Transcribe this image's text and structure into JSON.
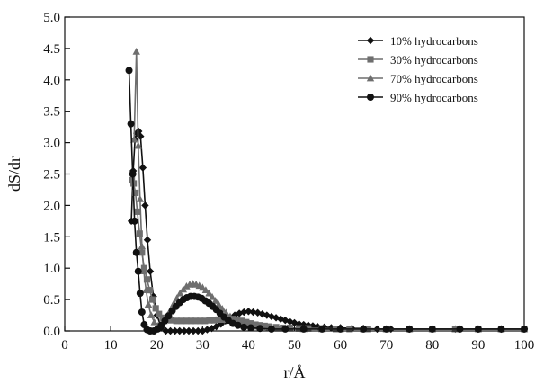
{
  "chart_data": {
    "type": "line",
    "title": "",
    "xlabel": "r/Å",
    "ylabel": "dS/dr",
    "xlim": [
      0,
      100
    ],
    "ylim": [
      0,
      5.0
    ],
    "xticks": [
      0,
      10,
      20,
      30,
      40,
      50,
      60,
      70,
      80,
      90,
      100
    ],
    "xtick_labels": [
      "0",
      "10",
      "20",
      "30",
      "40",
      "50",
      "60",
      "70",
      "80",
      "90",
      "100"
    ],
    "yticks": [
      0,
      0.5,
      1.0,
      1.5,
      2.0,
      2.5,
      3.0,
      3.5,
      4.0,
      4.5,
      5.0
    ],
    "ytick_labels": [
      "0.0",
      "0.5",
      "1.0",
      "1.5",
      "2.0",
      "2.5",
      "3.0",
      "3.5",
      "4.0",
      "4.5",
      "5.0"
    ],
    "grid": false,
    "legend_position": "top-right",
    "series": [
      {
        "name": "10% hydrocarbons",
        "color": "#111111",
        "marker": "diamond",
        "points": [
          [
            14.5,
            1.75
          ],
          [
            14.9,
            2.55
          ],
          [
            15.3,
            3.05
          ],
          [
            15.7,
            3.15
          ],
          [
            16.1,
            3.18
          ],
          [
            16.5,
            3.1
          ],
          [
            17.0,
            2.6
          ],
          [
            17.5,
            2.0
          ],
          [
            18.0,
            1.45
          ],
          [
            18.6,
            0.95
          ],
          [
            19.3,
            0.55
          ],
          [
            20.1,
            0.25
          ],
          [
            21.0,
            0.05
          ],
          [
            22.0,
            0.0
          ],
          [
            23.0,
            0.0
          ],
          [
            24.0,
            0.0
          ],
          [
            25.0,
            0.0
          ],
          [
            26.0,
            0.0
          ],
          [
            27.0,
            0.0
          ],
          [
            28.0,
            0.0
          ],
          [
            29.0,
            0.0
          ],
          [
            30.0,
            0.0
          ],
          [
            31.0,
            0.02
          ],
          [
            32.0,
            0.04
          ],
          [
            33.0,
            0.07
          ],
          [
            34.0,
            0.11
          ],
          [
            35.0,
            0.16
          ],
          [
            36.0,
            0.21
          ],
          [
            37.0,
            0.25
          ],
          [
            38.0,
            0.28
          ],
          [
            39.0,
            0.3
          ],
          [
            40.0,
            0.31
          ],
          [
            41.0,
            0.3
          ],
          [
            42.0,
            0.29
          ],
          [
            43.0,
            0.27
          ],
          [
            44.0,
            0.25
          ],
          [
            45.0,
            0.23
          ],
          [
            46.0,
            0.21
          ],
          [
            47.0,
            0.19
          ],
          [
            48.0,
            0.17
          ],
          [
            49.0,
            0.15
          ],
          [
            50.0,
            0.13
          ],
          [
            51.0,
            0.11
          ],
          [
            52.0,
            0.1
          ],
          [
            53.0,
            0.09
          ],
          [
            54.0,
            0.08
          ],
          [
            55.0,
            0.07
          ],
          [
            56.5,
            0.06
          ],
          [
            58.0,
            0.05
          ],
          [
            60.0,
            0.05
          ],
          [
            62.5,
            0.04
          ],
          [
            65.0,
            0.04
          ],
          [
            68.0,
            0.03
          ],
          [
            71.0,
            0.03
          ],
          [
            75.0,
            0.03
          ],
          [
            80.0,
            0.03
          ],
          [
            85.0,
            0.03
          ],
          [
            90.0,
            0.03
          ],
          [
            95.0,
            0.03
          ],
          [
            100.0,
            0.03
          ]
        ]
      },
      {
        "name": "30% hydrocarbons",
        "color": "#6e6e6e",
        "marker": "square",
        "points": [
          [
            14.6,
            2.4
          ],
          [
            15.0,
            2.35
          ],
          [
            15.4,
            2.2
          ],
          [
            15.8,
            1.9
          ],
          [
            16.3,
            1.55
          ],
          [
            16.8,
            1.25
          ],
          [
            17.3,
            1.0
          ],
          [
            17.9,
            0.82
          ],
          [
            18.5,
            0.65
          ],
          [
            19.1,
            0.5
          ],
          [
            19.8,
            0.36
          ],
          [
            20.5,
            0.27
          ],
          [
            21.3,
            0.21
          ],
          [
            22.2,
            0.18
          ],
          [
            23.2,
            0.17
          ],
          [
            24.3,
            0.16
          ],
          [
            25.4,
            0.16
          ],
          [
            26.5,
            0.16
          ],
          [
            27.5,
            0.16
          ],
          [
            28.5,
            0.16
          ],
          [
            29.5,
            0.16
          ],
          [
            30.5,
            0.16
          ],
          [
            31.5,
            0.17
          ],
          [
            32.5,
            0.17
          ],
          [
            33.5,
            0.18
          ],
          [
            34.5,
            0.18
          ],
          [
            35.5,
            0.19
          ],
          [
            36.5,
            0.19
          ],
          [
            37.5,
            0.18
          ],
          [
            38.5,
            0.16
          ],
          [
            39.5,
            0.14
          ],
          [
            40.5,
            0.12
          ],
          [
            41.5,
            0.1
          ],
          [
            42.5,
            0.09
          ],
          [
            43.5,
            0.08
          ],
          [
            44.5,
            0.07
          ],
          [
            46.0,
            0.06
          ],
          [
            47.5,
            0.05
          ],
          [
            49.0,
            0.05
          ],
          [
            51.0,
            0.04
          ],
          [
            53.0,
            0.04
          ],
          [
            56.0,
            0.04
          ],
          [
            59.0,
            0.03
          ],
          [
            62.0,
            0.03
          ],
          [
            66.0,
            0.03
          ],
          [
            70.0,
            0.03
          ],
          [
            75.0,
            0.03
          ],
          [
            80.0,
            0.03
          ],
          [
            85.0,
            0.03
          ],
          [
            90.0,
            0.03
          ],
          [
            95.0,
            0.03
          ],
          [
            100.0,
            0.03
          ]
        ]
      },
      {
        "name": "70% hydrocarbons",
        "color": "#6e6e6e",
        "marker": "triangle",
        "points": [
          [
            15.1,
            3.05
          ],
          [
            15.6,
            4.45
          ],
          [
            16.0,
            2.95
          ],
          [
            16.4,
            2.1
          ],
          [
            16.8,
            1.35
          ],
          [
            17.2,
            0.95
          ],
          [
            17.7,
            0.65
          ],
          [
            18.2,
            0.42
          ],
          [
            18.8,
            0.25
          ],
          [
            19.5,
            0.14
          ],
          [
            20.2,
            0.08
          ],
          [
            20.9,
            0.1
          ],
          [
            21.6,
            0.16
          ],
          [
            22.3,
            0.24
          ],
          [
            23.0,
            0.33
          ],
          [
            23.7,
            0.43
          ],
          [
            24.4,
            0.52
          ],
          [
            25.1,
            0.6
          ],
          [
            25.8,
            0.66
          ],
          [
            26.5,
            0.71
          ],
          [
            27.2,
            0.74
          ],
          [
            27.9,
            0.75
          ],
          [
            28.6,
            0.74
          ],
          [
            29.3,
            0.72
          ],
          [
            30.0,
            0.69
          ],
          [
            30.7,
            0.65
          ],
          [
            31.4,
            0.6
          ],
          [
            32.1,
            0.54
          ],
          [
            32.8,
            0.48
          ],
          [
            33.5,
            0.42
          ],
          [
            34.3,
            0.35
          ],
          [
            35.1,
            0.29
          ],
          [
            36.0,
            0.23
          ],
          [
            37.0,
            0.18
          ],
          [
            38.0,
            0.14
          ],
          [
            39.0,
            0.11
          ],
          [
            40.2,
            0.09
          ],
          [
            41.5,
            0.07
          ],
          [
            43.0,
            0.06
          ],
          [
            44.5,
            0.05
          ],
          [
            46.5,
            0.04
          ],
          [
            49.0,
            0.04
          ],
          [
            52.0,
            0.03
          ],
          [
            56.0,
            0.03
          ],
          [
            60.0,
            0.03
          ],
          [
            65.0,
            0.03
          ],
          [
            70.0,
            0.03
          ],
          [
            75.0,
            0.03
          ],
          [
            80.0,
            0.03
          ],
          [
            85.0,
            0.03
          ],
          [
            90.0,
            0.03
          ],
          [
            95.0,
            0.03
          ],
          [
            100.0,
            0.03
          ]
        ]
      },
      {
        "name": "90% hydrocarbons",
        "color": "#111111",
        "marker": "circle",
        "points": [
          [
            14.0,
            4.15
          ],
          [
            14.4,
            3.3
          ],
          [
            14.8,
            2.5
          ],
          [
            15.2,
            1.75
          ],
          [
            15.6,
            1.25
          ],
          [
            16.0,
            0.95
          ],
          [
            16.4,
            0.6
          ],
          [
            16.8,
            0.3
          ],
          [
            17.3,
            0.1
          ],
          [
            17.9,
            0.02
          ],
          [
            18.6,
            0.0
          ],
          [
            19.4,
            0.0
          ],
          [
            20.2,
            0.03
          ],
          [
            21.0,
            0.09
          ],
          [
            21.8,
            0.16
          ],
          [
            22.6,
            0.24
          ],
          [
            23.4,
            0.32
          ],
          [
            24.2,
            0.39
          ],
          [
            25.0,
            0.45
          ],
          [
            25.8,
            0.5
          ],
          [
            26.6,
            0.53
          ],
          [
            27.4,
            0.55
          ],
          [
            28.2,
            0.55
          ],
          [
            29.0,
            0.54
          ],
          [
            29.8,
            0.52
          ],
          [
            30.6,
            0.48
          ],
          [
            31.4,
            0.44
          ],
          [
            32.2,
            0.39
          ],
          [
            33.0,
            0.34
          ],
          [
            33.8,
            0.28
          ],
          [
            34.7,
            0.22
          ],
          [
            35.6,
            0.17
          ],
          [
            36.6,
            0.12
          ],
          [
            37.7,
            0.09
          ],
          [
            39.0,
            0.06
          ],
          [
            40.5,
            0.05
          ],
          [
            42.5,
            0.04
          ],
          [
            45.0,
            0.03
          ],
          [
            48.0,
            0.03
          ],
          [
            52.0,
            0.03
          ],
          [
            56.0,
            0.03
          ],
          [
            60.0,
            0.03
          ],
          [
            65.0,
            0.03
          ],
          [
            70.0,
            0.03
          ],
          [
            75.0,
            0.03
          ],
          [
            80.0,
            0.03
          ],
          [
            86.0,
            0.03
          ],
          [
            90.0,
            0.03
          ],
          [
            95.0,
            0.03
          ],
          [
            100.0,
            0.03
          ]
        ]
      }
    ]
  }
}
